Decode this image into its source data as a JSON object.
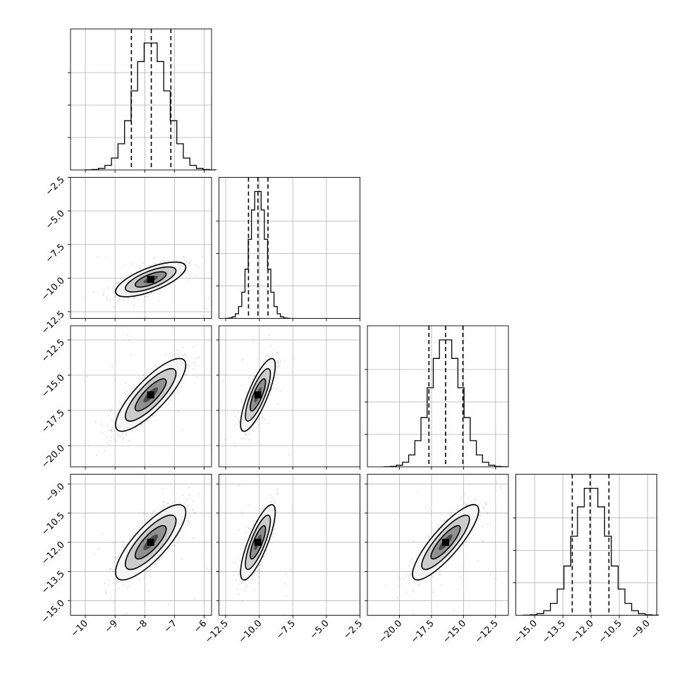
{
  "chart_data": {
    "type": "corner",
    "params": [
      {
        "range": [
          -10.5,
          -5.75
        ],
        "ticks": [
          -10,
          -9,
          -8,
          -7,
          -6
        ],
        "tick_labels": [
          "−10",
          "−9",
          "−8",
          "−7",
          "−6"
        ],
        "mean": -7.8,
        "sd": 0.55,
        "quantiles": [
          -8.45,
          -7.78,
          -7.12
        ]
      },
      {
        "range": [
          -13.0,
          -2.5
        ],
        "ticks": [
          -12.5,
          -10.0,
          -7.5,
          -5.0,
          -2.5
        ],
        "tick_labels": [
          "−12.5",
          "−10.0",
          "−7.5",
          "−5.0",
          "−2.5"
        ],
        "mean": -10.1,
        "sd": 0.6,
        "quantiles": [
          -10.8,
          -10.1,
          -9.35
        ]
      },
      {
        "range": [
          -22.5,
          -11.5
        ],
        "ticks": [
          -20.0,
          -17.5,
          -15.0,
          -12.5
        ],
        "tick_labels": [
          "−20.0",
          "−17.5",
          "−15.0",
          "−12.5"
        ],
        "mean": -16.4,
        "sd": 1.2,
        "quantiles": [
          -17.7,
          -16.4,
          -15.05
        ]
      },
      {
        "range": [
          -16.0,
          -8.5
        ],
        "ticks": [
          -15.0,
          -13.5,
          -12.0,
          -10.5,
          -9.0
        ],
        "tick_labels": [
          "−15.0",
          "−13.5",
          "−12.0",
          "−10.5",
          "−9.0"
        ],
        "mean": -12.0,
        "sd": 0.9,
        "quantiles": [
          -13.0,
          -12.05,
          -11.05
        ]
      }
    ],
    "ylim": {
      "1": [
        -13.0,
        -2.5
      ],
      "2": [
        -21.5,
        -11.5
      ],
      "3": [
        -15.75,
        -8.5
      ]
    },
    "yticks": {
      "1": {
        "ticks": [
          -2.5,
          -5.0,
          -7.5,
          -10.0,
          -12.5
        ],
        "labels": [
          "−2.5",
          "−5.0",
          "−7.5",
          "−10.0",
          "−12.5"
        ]
      },
      "2": {
        "ticks": [
          -12.5,
          -15.0,
          -17.5,
          -20.0
        ],
        "labels": [
          "−12.5",
          "−15.0",
          "−17.5",
          "−20.0"
        ]
      },
      "3": {
        "ticks": [
          -9.0,
          -10.5,
          -12.0,
          -13.5,
          -15.0
        ],
        "labels": [
          "−9.0",
          "−10.5",
          "−12.0",
          "−13.5",
          "−15.0"
        ]
      }
    },
    "correlations": {
      "1-0": 0.7,
      "2-0": 0.82,
      "2-1": 0.8,
      "3-0": 0.8,
      "3-1": 0.8,
      "3-2": 0.85
    },
    "grid": true,
    "colors": {
      "samples": "#808080",
      "contour": "#000000",
      "hist": "#000000",
      "grid": "#b0b0b0"
    }
  }
}
